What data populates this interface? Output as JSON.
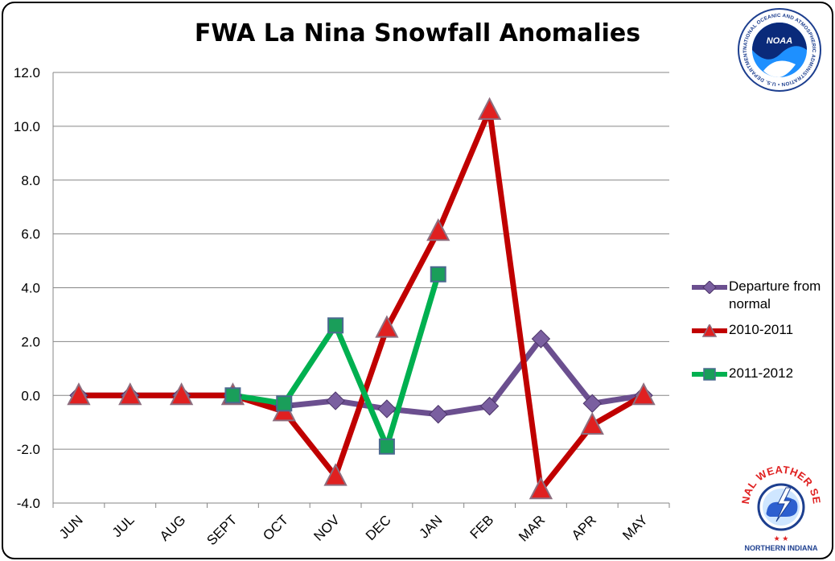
{
  "chart_data": {
    "type": "line",
    "title": "FWA La Nina Snowfall Anomalies",
    "categories": [
      "JUN",
      "JUL",
      "AUG",
      "SEPT",
      "OCT",
      "NOV",
      "DEC",
      "JAN",
      "FEB",
      "MAR",
      "APR",
      "MAY"
    ],
    "ylim": [
      -4.0,
      12.0
    ],
    "yticks": [
      "-4.0",
      "-2.0",
      "0.0",
      "2.0",
      "4.0",
      "6.0",
      "8.0",
      "10.0",
      "12.0"
    ],
    "grid": true,
    "legend_position": "right",
    "series": [
      {
        "name": "Departure from normal",
        "values": [
          0.0,
          0.0,
          0.0,
          0.0,
          -0.4,
          -0.2,
          -0.5,
          -0.7,
          -0.4,
          2.1,
          -0.3,
          0.0
        ],
        "color": "#6b4f8f",
        "marker": "diamond"
      },
      {
        "name": "2010-2011",
        "values": [
          0.0,
          0.0,
          0.0,
          0.0,
          -0.6,
          -3.0,
          2.5,
          6.1,
          10.6,
          -3.5,
          -1.1,
          0.0
        ],
        "color": "#c00000",
        "marker": "triangle"
      },
      {
        "name": "2011-2012",
        "values": [
          null,
          null,
          null,
          0.0,
          -0.3,
          2.6,
          -1.9,
          4.5,
          null,
          null,
          null,
          null
        ],
        "color": "#00b050",
        "marker": "square"
      }
    ]
  },
  "legend": {
    "items": [
      {
        "label": "Departure from normal"
      },
      {
        "label": "2010-2011"
      },
      {
        "label": "2011-2012"
      }
    ]
  },
  "logos": {
    "noaa": {
      "text": "NOAA",
      "ring_text": "NATIONAL OCEANIC AND ATMOSPHERIC ADMINISTRATION • U.S. DEPARTMENT OF COMMERCE •"
    },
    "nws": {
      "ring_text": "NATIONAL WEATHER SERVICE",
      "caption": "NORTHERN INDIANA"
    }
  }
}
